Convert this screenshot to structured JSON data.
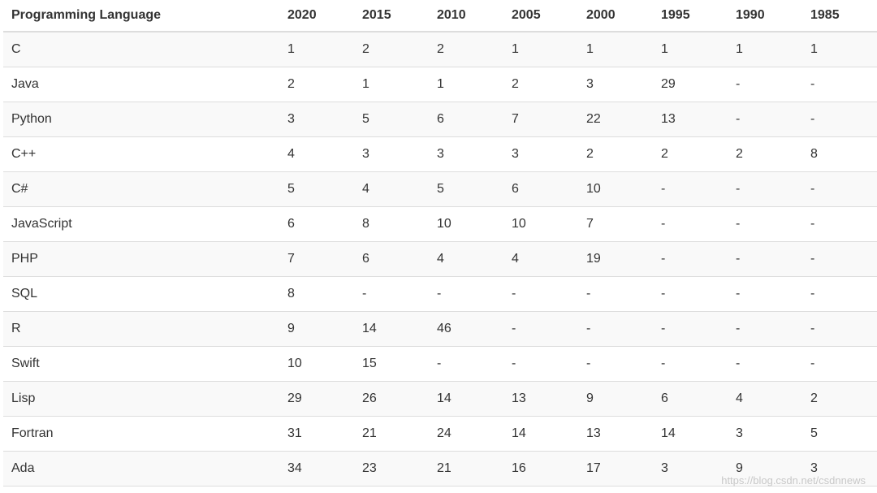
{
  "table": {
    "headers": [
      "Programming Language",
      "2020",
      "2015",
      "2010",
      "2005",
      "2000",
      "1995",
      "1990",
      "1985"
    ],
    "rows": [
      [
        "C",
        "1",
        "2",
        "2",
        "1",
        "1",
        "1",
        "1",
        "1"
      ],
      [
        "Java",
        "2",
        "1",
        "1",
        "2",
        "3",
        "29",
        "-",
        "-"
      ],
      [
        "Python",
        "3",
        "5",
        "6",
        "7",
        "22",
        "13",
        "-",
        "-"
      ],
      [
        "C++",
        "4",
        "3",
        "3",
        "3",
        "2",
        "2",
        "2",
        "8"
      ],
      [
        "C#",
        "5",
        "4",
        "5",
        "6",
        "10",
        "-",
        "-",
        "-"
      ],
      [
        "JavaScript",
        "6",
        "8",
        "10",
        "10",
        "7",
        "-",
        "-",
        "-"
      ],
      [
        "PHP",
        "7",
        "6",
        "4",
        "4",
        "19",
        "-",
        "-",
        "-"
      ],
      [
        "SQL",
        "8",
        "-",
        "-",
        "-",
        "-",
        "-",
        "-",
        "-"
      ],
      [
        "R",
        "9",
        "14",
        "46",
        "-",
        "-",
        "-",
        "-",
        "-"
      ],
      [
        "Swift",
        "10",
        "15",
        "-",
        "-",
        "-",
        "-",
        "-",
        "-"
      ],
      [
        "Lisp",
        "29",
        "26",
        "14",
        "13",
        "9",
        "6",
        "4",
        "2"
      ],
      [
        "Fortran",
        "31",
        "21",
        "24",
        "14",
        "13",
        "14",
        "3",
        "5"
      ],
      [
        "Ada",
        "34",
        "23",
        "21",
        "16",
        "17",
        "3",
        "9",
        "3"
      ]
    ]
  },
  "watermark": "https://blog.csdn.net/csdnnews"
}
